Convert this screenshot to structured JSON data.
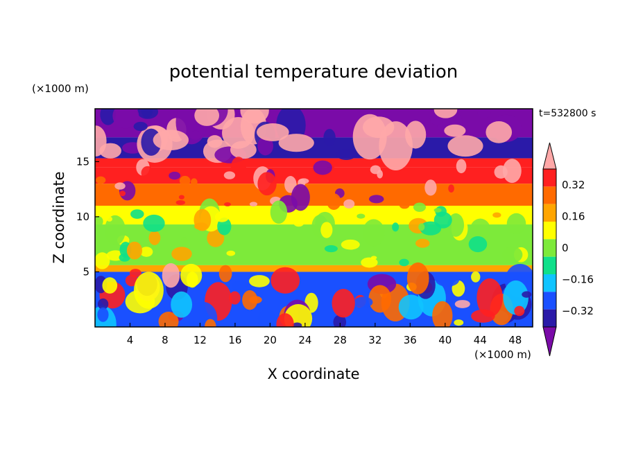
{
  "chart_data": {
    "type": "heatmap",
    "title": "potential temperature deviation",
    "xlabel": "X coordinate",
    "ylabel": "Z coordinate",
    "x_unit": "(×1000 m)",
    "y_unit": "(×1000 m)",
    "time_label": "t=532800 s",
    "xlim": [
      0,
      50
    ],
    "ylim": [
      0,
      19.8
    ],
    "x_ticks": [
      "4",
      "8",
      "12",
      "16",
      "20",
      "24",
      "28",
      "32",
      "36",
      "40",
      "44",
      "48"
    ],
    "x_tick_values": [
      4,
      8,
      12,
      16,
      20,
      24,
      28,
      32,
      36,
      40,
      44,
      48
    ],
    "y_ticks": [
      "5",
      "10",
      "15"
    ],
    "y_tick_values": [
      5,
      10,
      15
    ],
    "colorbar": {
      "levels": [
        -0.4,
        -0.32,
        -0.24,
        -0.16,
        -0.08,
        0,
        0.08,
        0.16,
        0.24,
        0.32,
        0.4
      ],
      "labels": [
        "0.32",
        "0.16",
        "0",
        "−0.16",
        "−0.32"
      ],
      "label_values": [
        0.32,
        0.16,
        0,
        -0.16,
        -0.32
      ],
      "colors": [
        "#7a0ba8",
        "#2a1aa8",
        "#1a50ff",
        "#10c4ff",
        "#10e08a",
        "#7dea3a",
        "#ffff00",
        "#ffa500",
        "#ff6a00",
        "#ff2020",
        "#ffa8a8"
      ],
      "extend": "both"
    },
    "field_bands": [
      {
        "z_from": 17.2,
        "z_to": 19.8,
        "value": -0.44
      },
      {
        "z_from": 15.3,
        "z_to": 17.2,
        "value": -0.36
      },
      {
        "z_from": 14.5,
        "z_to": 15.3,
        "value": 0.3
      },
      {
        "z_from": 13.0,
        "z_to": 14.5,
        "value": 0.26
      },
      {
        "z_from": 11.0,
        "z_to": 13.0,
        "value": 0.2
      },
      {
        "z_from": 9.3,
        "z_to": 11.0,
        "value": 0.04
      },
      {
        "z_from": 5.6,
        "z_to": 9.3,
        "value": -0.02
      },
      {
        "z_from": 5.0,
        "z_to": 5.6,
        "value": 0.12
      },
      {
        "z_from": 0.0,
        "z_to": 5.0,
        "value": -0.28
      }
    ]
  }
}
